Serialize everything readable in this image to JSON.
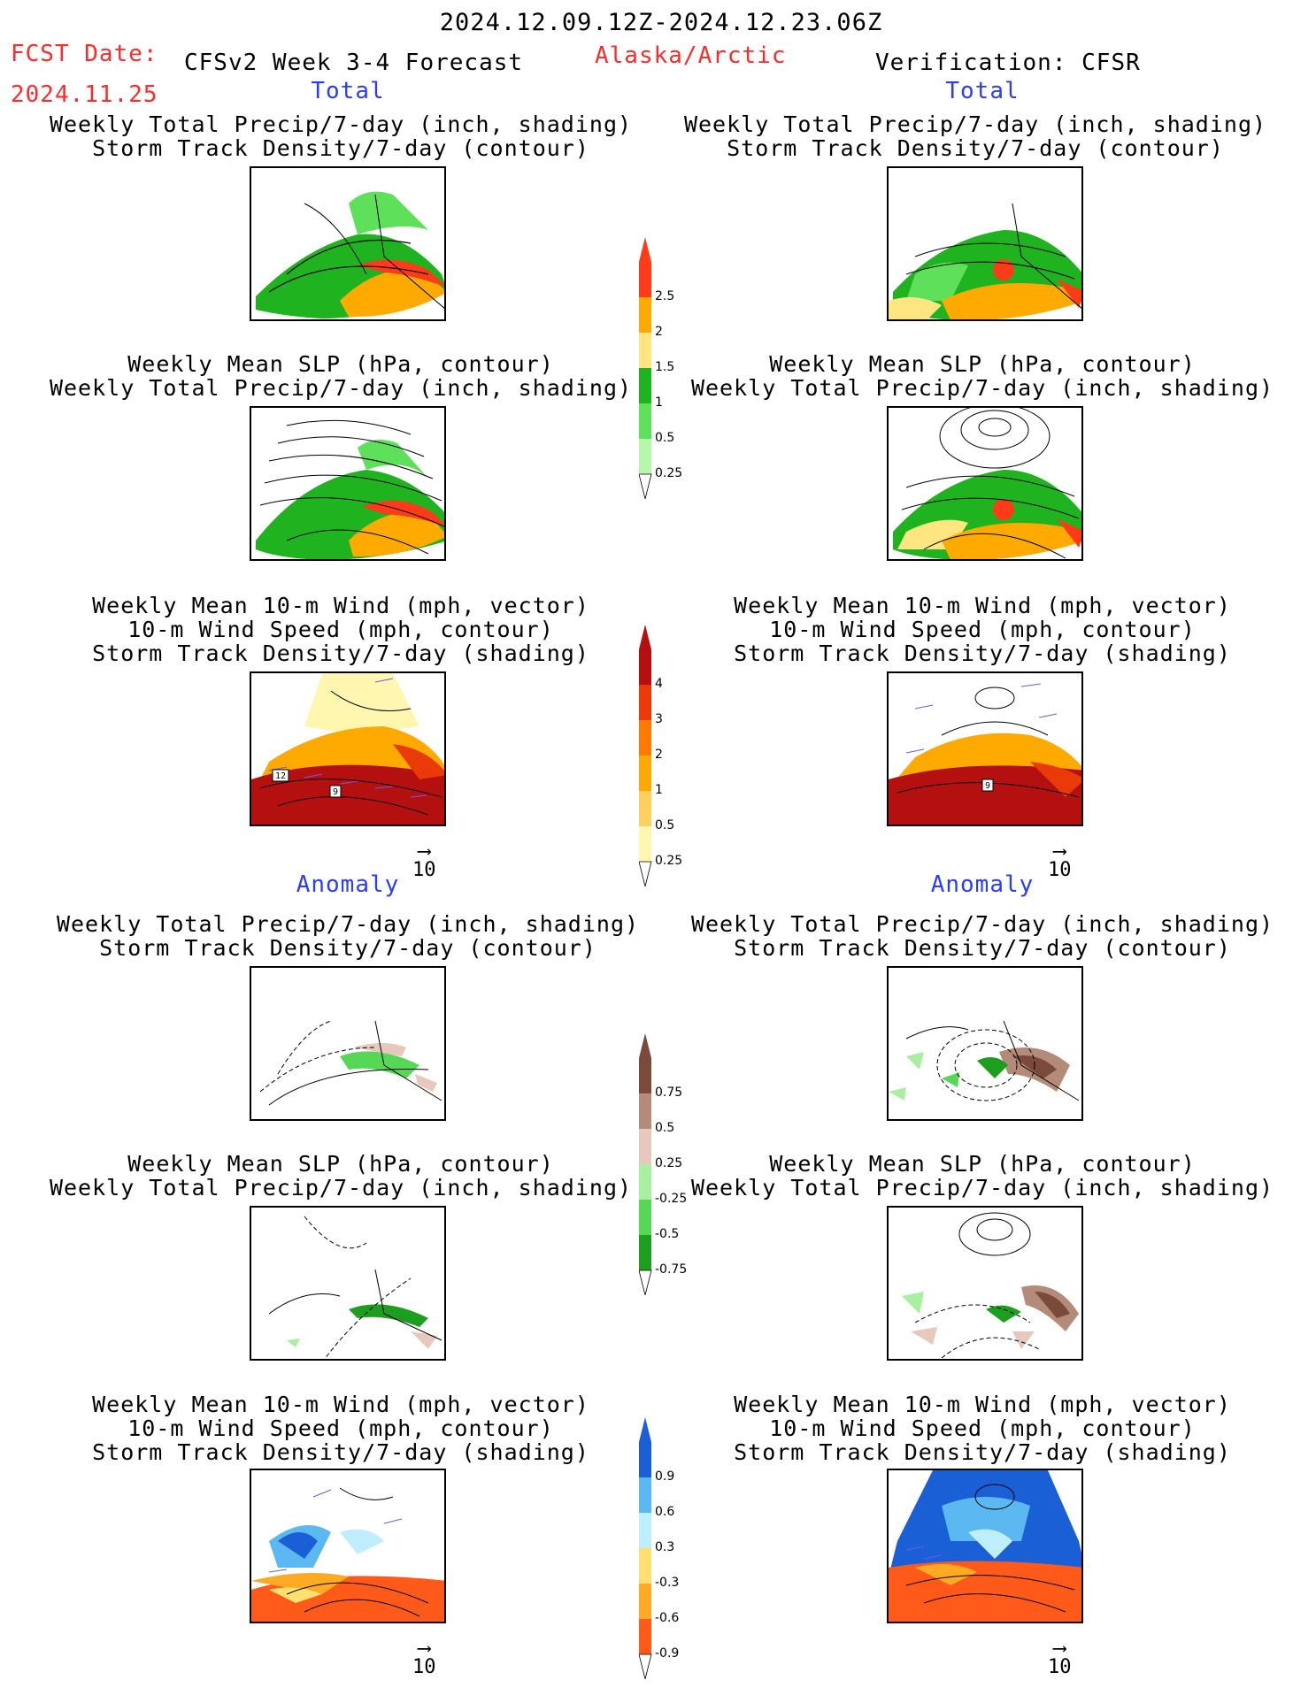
{
  "header": {
    "date_range": "2024.12.09.12Z-2024.12.23.06Z",
    "fcst_label": "FCST Date:",
    "fcst_date": "2024.11.25",
    "product": "CFSv2 Week 3-4 Forecast",
    "region": "Alaska/Arctic",
    "verification": "Verification: CFSR"
  },
  "sections": {
    "total_left": "Total",
    "total_right": "Total",
    "anomaly_left": "Anomaly",
    "anomaly_right": "Anomaly"
  },
  "panel_titles": {
    "precip_storm_1": "Weekly Total Precip/7-day (inch, shading)",
    "precip_storm_2": "Storm Track Density/7-day (contour)",
    "slp_precip_1": "Weekly Mean SLP (hPa, contour)",
    "slp_precip_2": "Weekly Total Precip/7-day (inch, shading)",
    "wind_1": "Weekly Mean 10-m Wind (mph, vector)",
    "wind_2": "10-m Wind Speed (mph, contour)",
    "wind_3": "Storm Track Density/7-day (shading)"
  },
  "vector_scale": "10",
  "contour_labels": {
    "a": "12",
    "b": "9",
    "c": "9"
  },
  "colors": {
    "header_red": "#ff2b2b",
    "section_blue": "#2a3cff"
  },
  "chart_data": [
    {
      "type": "heatmap",
      "name": "precip_total_colorbar",
      "ticks": [
        "0.25",
        "0.5",
        "1",
        "1.5",
        "2",
        "2.5"
      ],
      "colors": [
        "#b6f7ad",
        "#5fe05a",
        "#1fb320",
        "#ffe680",
        "#ffaa00",
        "#ff3b1a"
      ]
    },
    {
      "type": "heatmap",
      "name": "storm_density_total_colorbar",
      "ticks": [
        "0.25",
        "0.5",
        "1",
        "2",
        "3",
        "4"
      ],
      "colors": [
        "#fff7b0",
        "#ffd060",
        "#ffaa00",
        "#ff7a00",
        "#ea3a0a",
        "#b51010"
      ]
    },
    {
      "type": "heatmap",
      "name": "precip_anomaly_colorbar",
      "ticks": [
        "0.75",
        "0.5",
        "0.25",
        "-0.25",
        "-0.5",
        "-0.75"
      ],
      "colors": [
        "#1e9e1e",
        "#56d856",
        "#a8f0a0",
        "#e6c8bc",
        "#b48a78",
        "#7a4a3a"
      ]
    },
    {
      "type": "heatmap",
      "name": "storm_density_anomaly_colorbar",
      "ticks": [
        "0.9",
        "0.6",
        "0.3",
        "-0.3",
        "-0.6",
        "-0.9"
      ],
      "colors": [
        "#ff5a1a",
        "#ffaa22",
        "#ffe070",
        "#bfeeff",
        "#5bb8f0",
        "#1a5fd6"
      ]
    }
  ]
}
